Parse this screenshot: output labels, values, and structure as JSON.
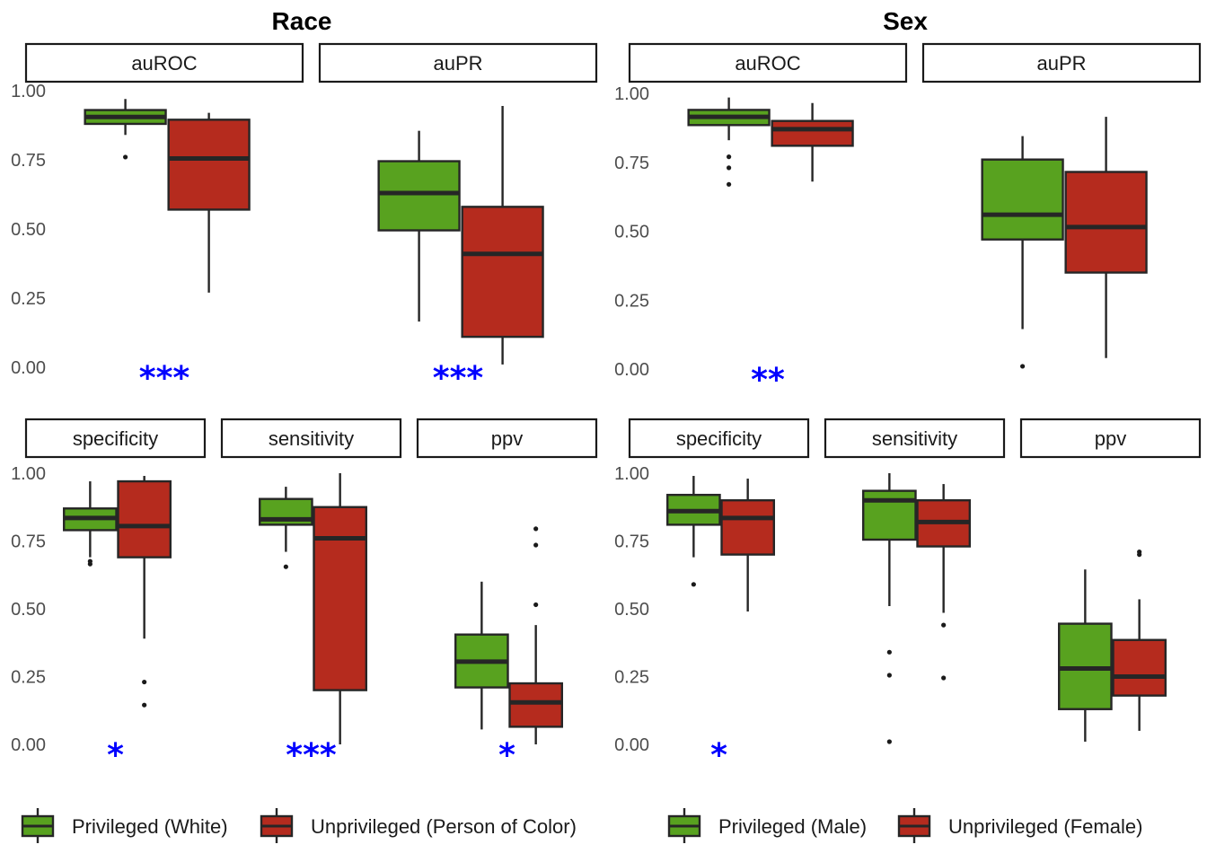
{
  "colors": {
    "privileged": "#58a21f",
    "unprivileged": "#b52b1e",
    "significance": "#0000ff",
    "outline": "#262626"
  },
  "chart_data": {
    "type": "boxplot",
    "y_ticks": [
      "0.00",
      "0.25",
      "0.50",
      "0.75",
      "1.00"
    ],
    "ylim": [
      0,
      1
    ],
    "groups": [
      {
        "title": "Race",
        "legend": [
          "Privileged (White)",
          "Unprivileged (Person of Color)"
        ],
        "rows": [
          {
            "panels": [
              {
                "metric": "auROC",
                "significance": "***",
                "privileged": {
                  "min": 0.84,
                  "q1": 0.88,
                  "median": 0.905,
                  "q3": 0.93,
                  "max": 0.97,
                  "outliers": [
                    0.76
                  ]
                },
                "unprivileged": {
                  "min": 0.27,
                  "q1": 0.57,
                  "median": 0.755,
                  "q3": 0.895,
                  "max": 0.92,
                  "outliers": []
                }
              },
              {
                "metric": "auPR",
                "significance": "***",
                "privileged": {
                  "min": 0.165,
                  "q1": 0.495,
                  "median": 0.63,
                  "q3": 0.745,
                  "max": 0.855,
                  "outliers": []
                },
                "unprivileged": {
                  "min": 0.01,
                  "q1": 0.11,
                  "median": 0.41,
                  "q3": 0.58,
                  "max": 0.945,
                  "outliers": []
                }
              }
            ]
          },
          {
            "panels": [
              {
                "metric": "specificity",
                "significance": "*",
                "privileged": {
                  "min": 0.69,
                  "q1": 0.79,
                  "median": 0.835,
                  "q3": 0.87,
                  "max": 0.97,
                  "outliers": [
                    0.665,
                    0.675
                  ]
                },
                "unprivileged": {
                  "min": 0.39,
                  "q1": 0.69,
                  "median": 0.805,
                  "q3": 0.97,
                  "max": 0.99,
                  "outliers": [
                    0.23,
                    0.145
                  ]
                }
              },
              {
                "metric": "sensitivity",
                "significance": "***",
                "privileged": {
                  "min": 0.71,
                  "q1": 0.81,
                  "median": 0.83,
                  "q3": 0.905,
                  "max": 0.95,
                  "outliers": [
                    0.655
                  ]
                },
                "unprivileged": {
                  "min": 0.0,
                  "q1": 0.2,
                  "median": 0.76,
                  "q3": 0.875,
                  "max": 1.0,
                  "outliers": []
                }
              },
              {
                "metric": "ppv",
                "significance": "*",
                "privileged": {
                  "min": 0.055,
                  "q1": 0.21,
                  "median": 0.305,
                  "q3": 0.405,
                  "max": 0.6,
                  "outliers": []
                },
                "unprivileged": {
                  "min": 0.0,
                  "q1": 0.065,
                  "median": 0.155,
                  "q3": 0.225,
                  "max": 0.44,
                  "outliers": [
                    0.515,
                    0.735,
                    0.795
                  ]
                }
              }
            ]
          }
        ]
      },
      {
        "title": "Sex",
        "legend": [
          "Privileged (Male)",
          "Unprivileged (Female)"
        ],
        "rows": [
          {
            "panels": [
              {
                "metric": "auROC",
                "significance": "**",
                "privileged": {
                  "min": 0.83,
                  "q1": 0.885,
                  "median": 0.915,
                  "q3": 0.94,
                  "max": 0.985,
                  "outliers": [
                    0.67,
                    0.73,
                    0.77
                  ]
                },
                "unprivileged": {
                  "min": 0.68,
                  "q1": 0.81,
                  "median": 0.87,
                  "q3": 0.9,
                  "max": 0.965,
                  "outliers": []
                }
              },
              {
                "metric": "auPR",
                "significance": "",
                "privileged": {
                  "min": 0.145,
                  "q1": 0.47,
                  "median": 0.56,
                  "q3": 0.76,
                  "max": 0.845,
                  "outliers": [
                    0.01
                  ]
                },
                "unprivileged": {
                  "min": 0.04,
                  "q1": 0.35,
                  "median": 0.515,
                  "q3": 0.715,
                  "max": 0.915,
                  "outliers": []
                }
              }
            ]
          },
          {
            "panels": [
              {
                "metric": "specificity",
                "significance": "*",
                "privileged": {
                  "min": 0.69,
                  "q1": 0.81,
                  "median": 0.86,
                  "q3": 0.92,
                  "max": 0.99,
                  "outliers": [
                    0.59
                  ]
                },
                "unprivileged": {
                  "min": 0.49,
                  "q1": 0.7,
                  "median": 0.835,
                  "q3": 0.9,
                  "max": 0.98,
                  "outliers": []
                }
              },
              {
                "metric": "sensitivity",
                "significance": "",
                "privileged": {
                  "min": 0.51,
                  "q1": 0.755,
                  "median": 0.9,
                  "q3": 0.935,
                  "max": 1.0,
                  "outliers": [
                    0.34,
                    0.255,
                    0.01
                  ]
                },
                "unprivileged": {
                  "min": 0.485,
                  "q1": 0.73,
                  "median": 0.82,
                  "q3": 0.9,
                  "max": 0.96,
                  "outliers": [
                    0.44,
                    0.245
                  ]
                }
              },
              {
                "metric": "ppv",
                "significance": "",
                "privileged": {
                  "min": 0.01,
                  "q1": 0.13,
                  "median": 0.28,
                  "q3": 0.445,
                  "max": 0.645,
                  "outliers": []
                },
                "unprivileged": {
                  "min": 0.05,
                  "q1": 0.18,
                  "median": 0.25,
                  "q3": 0.385,
                  "max": 0.535,
                  "outliers": [
                    0.7,
                    0.71
                  ]
                }
              }
            ]
          }
        ]
      }
    ]
  }
}
